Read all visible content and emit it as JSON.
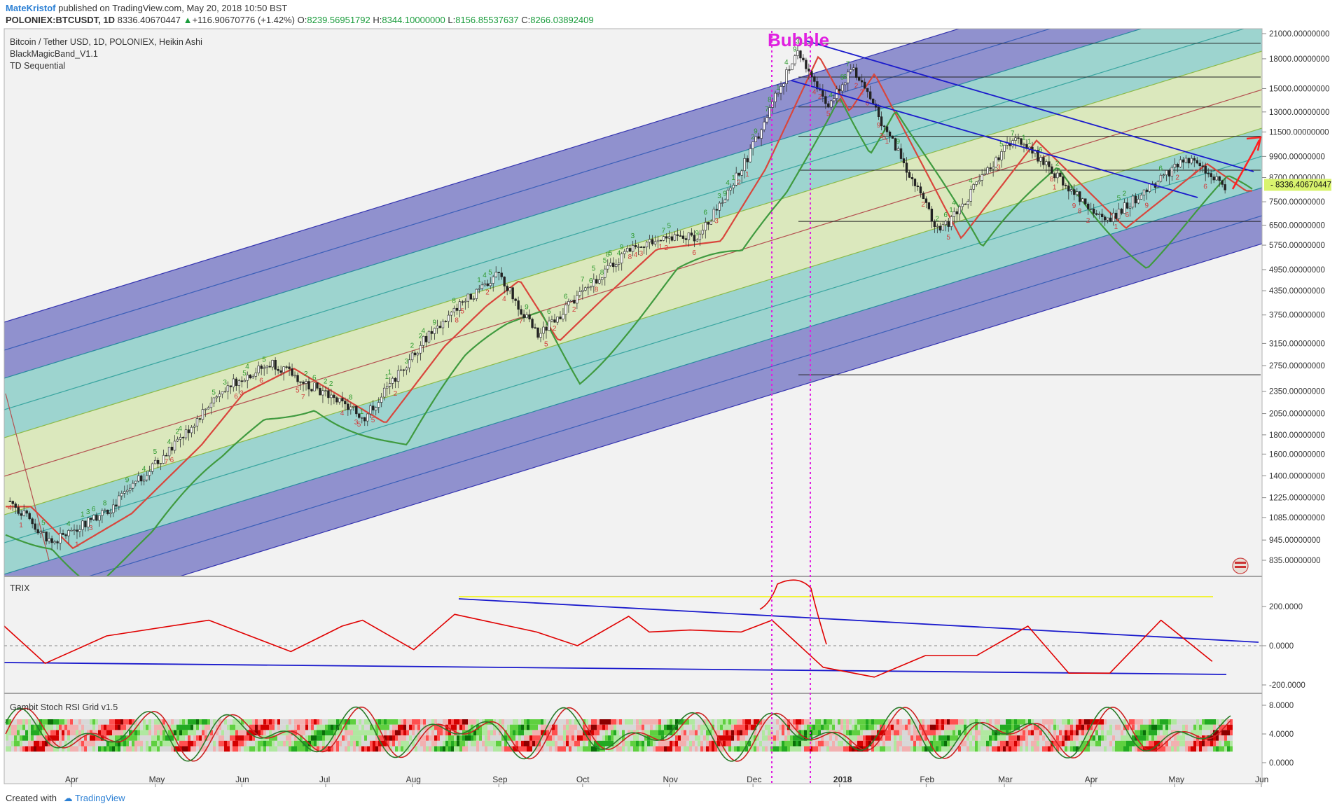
{
  "header": {
    "author": "MateKristof",
    "published": "published on TradingView.com, May 20, 2018 10:50 BST",
    "symbol": "POLONIEX:BTCUSDT, 1D",
    "last": "8336.40670447",
    "change": "+116.90670776 (+1.42%)",
    "o_label": "O:",
    "o": "8239.56951792",
    "h_label": "H:",
    "h": "8344.10000000",
    "l_label": "L:",
    "l": "8156.85537637",
    "c_label": "C:",
    "c": "8266.03892409"
  },
  "legend": {
    "title": "Bitcoin / Tether USD, 1D, POLONIEX, Heikin Ashi",
    "ind1": "BlackMagicBand_V1.1",
    "ind2": "TD Sequential"
  },
  "annotation": "Bubble",
  "footer": {
    "created": "Created with",
    "brand": "TradingView"
  },
  "colors": {
    "band_outer": "#7f80c8",
    "band_mid": "#8ecfc9",
    "band_inner": "#d7e6b4",
    "ema_red": "#d9463c",
    "ema_green": "#3f9a3f",
    "trix": "#e00000",
    "trend": "#1a1acc",
    "bubble": "#e020e0"
  },
  "chart_data": [
    {
      "type": "candlestick",
      "title": "Bitcoin / Tether USD, 1D, POLONIEX, Heikin Ashi",
      "scale": "log",
      "current_price_label": "8336.40670447",
      "y_ticks": [
        "21000.00000000",
        "18000.00000000",
        "15000.00000000",
        "13000.00000000",
        "11500.00000000",
        "9900.00000000",
        "8700.00000000",
        "7500.00000000",
        "6500.00000000",
        "5750.00000000",
        "4950.00000000",
        "4350.00000000",
        "3750.00000000",
        "3150.00000000",
        "2750.00000000",
        "2350.00000000",
        "2050.00000000",
        "1800.00000000",
        "1600.00000000",
        "1400.00000000",
        "1225.00000000",
        "1085.00000000",
        "945.00000000",
        "835.00000000"
      ],
      "y_values": [
        21000,
        18000,
        15000,
        13000,
        11500,
        9900,
        8700,
        7500,
        6500,
        5750,
        4950,
        4350,
        3750,
        3150,
        2750,
        2350,
        2050,
        1800,
        1600,
        1400,
        1225,
        1085,
        945,
        835
      ],
      "x_ticks": [
        "Apr",
        "May",
        "Jun",
        "Jul",
        "Aug",
        "Sep",
        "Oct",
        "Nov",
        "Dec",
        "2018",
        "Feb",
        "Mar",
        "Apr",
        "May",
        "Jun"
      ],
      "price_path": [
        [
          "2017-03-10",
          1200
        ],
        [
          "2017-03-25",
          930
        ],
        [
          "2017-04-15",
          1150
        ],
        [
          "2017-05-10",
          1750
        ],
        [
          "2017-05-25",
          2400
        ],
        [
          "2017-06-12",
          2800
        ],
        [
          "2017-07-15",
          2000
        ],
        [
          "2017-08-05",
          3200
        ],
        [
          "2017-08-20",
          4100
        ],
        [
          "2017-09-01",
          4800
        ],
        [
          "2017-09-15",
          3300
        ],
        [
          "2017-10-01",
          4300
        ],
        [
          "2017-10-20",
          5800
        ],
        [
          "2017-11-12",
          6100
        ],
        [
          "2017-11-28",
          9500
        ],
        [
          "2017-12-17",
          19000
        ],
        [
          "2017-12-28",
          13500
        ],
        [
          "2018-01-06",
          17000
        ],
        [
          "2018-02-06",
          6200
        ],
        [
          "2018-03-05",
          11300
        ],
        [
          "2018-04-06",
          6600
        ],
        [
          "2018-05-05",
          9800
        ],
        [
          "2018-05-19",
          8300
        ]
      ],
      "horizontal_levels": [
        19800,
        16100,
        13400,
        11200,
        9100,
        6650,
        2600
      ]
    },
    {
      "type": "line",
      "title": "TRIX",
      "y_ticks": [
        "200.0000",
        "0.0000",
        "-200.0000"
      ],
      "y_values": [
        200,
        0,
        -200
      ],
      "series": [
        {
          "values": [
            [
              0,
              100
            ],
            [
              0.04,
              -90
            ],
            [
              0.1,
              50
            ],
            [
              0.2,
              130
            ],
            [
              0.28,
              -30
            ],
            [
              0.33,
              100
            ],
            [
              0.35,
              130
            ],
            [
              0.4,
              -20
            ],
            [
              0.44,
              160
            ],
            [
              0.52,
              70
            ],
            [
              0.56,
              0
            ],
            [
              0.61,
              150
            ],
            [
              0.63,
              70
            ],
            [
              0.67,
              80
            ],
            [
              0.72,
              70
            ],
            [
              0.75,
              130
            ],
            [
              0.8,
              -110
            ],
            [
              0.85,
              -160
            ],
            [
              0.9,
              -50
            ],
            [
              0.95,
              -50
            ],
            [
              1.0,
              100
            ],
            [
              1.04,
              -140
            ],
            [
              1.08,
              -140
            ],
            [
              1.13,
              130
            ],
            [
              1.18,
              -80
            ]
          ]
        }
      ],
      "reference_line": 0
    },
    {
      "type": "line",
      "title": "Gambit Stoch RSI Grid v1.5",
      "y_ticks": [
        "8.0000",
        "4.0000",
        "0.0000"
      ],
      "y_values": [
        8,
        4,
        0
      ]
    }
  ]
}
